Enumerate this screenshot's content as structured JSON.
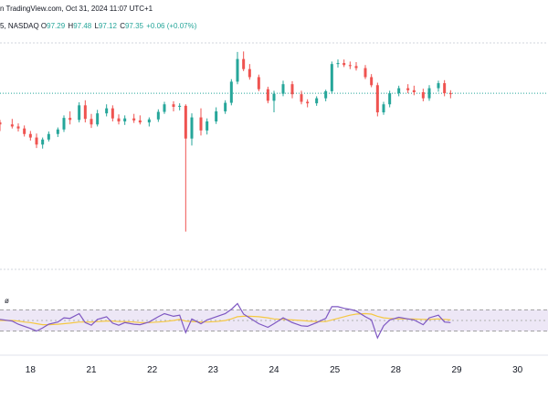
{
  "header": {
    "line1": "n TradingView.com, Oct 31, 2024 11:07 UTC+1",
    "symbol": "5, NASDAQ",
    "o_label": "O",
    "o_value": "97.29",
    "h_label": "H",
    "h_value": "97.48",
    "l_label": "L",
    "l_value": "97.12",
    "c_label": "C",
    "c_value": "97.35",
    "change": "+0.06 (+0.07%)"
  },
  "indicator": {
    "label": "ø"
  },
  "colors": {
    "up": "#26a69a",
    "down": "#ef5350",
    "rsi_line": "#7e57c2",
    "rsi_ma": "#f5c842",
    "rsi_band": "#ede7f6",
    "dotted": "#26a69a",
    "grid": "#d1d4dc"
  },
  "chart_data": [
    {
      "type": "candlestick",
      "title": "",
      "x_tick_labels": [
        "18",
        "21",
        "22",
        "23",
        "24",
        "25",
        "28",
        "29",
        "30"
      ],
      "x_tick_positions_days": [
        0.5,
        1.5,
        2.5,
        3.5,
        4.5,
        5.5,
        6.5,
        7.5,
        8.5
      ],
      "x_range_days": [
        0,
        9
      ],
      "ylim": [
        93.3,
        97.8
      ],
      "current_price_line": 96.8,
      "grid": false,
      "candles": [
        [
          0.0,
          96.22,
          96.27,
          96.05,
          96.18
        ],
        [
          0.2,
          96.18,
          96.29,
          96.1,
          96.14
        ],
        [
          0.3,
          96.14,
          96.2,
          96.04,
          96.1
        ],
        [
          0.4,
          96.1,
          96.16,
          95.94,
          95.99
        ],
        [
          0.5,
          95.99,
          96.05,
          95.86,
          95.92
        ],
        [
          0.6,
          95.92,
          96.0,
          95.71,
          95.78
        ],
        [
          0.7,
          95.78,
          95.92,
          95.7,
          95.88
        ],
        [
          0.8,
          95.88,
          96.04,
          95.84,
          95.99
        ],
        [
          0.95,
          95.99,
          96.12,
          95.93,
          96.08
        ],
        [
          1.05,
          96.08,
          96.36,
          96.03,
          96.31
        ],
        [
          1.15,
          96.31,
          96.44,
          96.18,
          96.27
        ],
        [
          1.3,
          96.27,
          96.62,
          96.22,
          96.56
        ],
        [
          1.4,
          96.56,
          96.66,
          96.22,
          96.29
        ],
        [
          1.5,
          96.29,
          96.39,
          96.11,
          96.18
        ],
        [
          1.6,
          96.18,
          96.47,
          96.14,
          96.4
        ],
        [
          1.75,
          96.4,
          96.58,
          96.34,
          96.5
        ],
        [
          1.85,
          96.5,
          96.56,
          96.24,
          96.3
        ],
        [
          1.95,
          96.3,
          96.38,
          96.18,
          96.24
        ],
        [
          2.05,
          96.24,
          96.36,
          96.17,
          96.3
        ],
        [
          2.2,
          96.3,
          96.39,
          96.21,
          96.26
        ],
        [
          2.3,
          96.26,
          96.36,
          96.18,
          96.22
        ],
        [
          2.45,
          96.22,
          96.32,
          96.14,
          96.28
        ],
        [
          2.6,
          96.28,
          96.48,
          96.23,
          96.43
        ],
        [
          2.7,
          96.43,
          96.63,
          96.39,
          96.58
        ],
        [
          2.85,
          96.58,
          96.64,
          96.44,
          96.53
        ],
        [
          2.95,
          96.53,
          96.6,
          96.46,
          96.55
        ],
        [
          3.05,
          96.55,
          96.58,
          94.05,
          95.9
        ],
        [
          3.15,
          95.9,
          96.4,
          95.76,
          96.32
        ],
        [
          3.3,
          96.32,
          96.5,
          95.96,
          96.06
        ],
        [
          3.4,
          96.06,
          96.3,
          95.98,
          96.24
        ],
        [
          3.55,
          96.24,
          96.52,
          96.19,
          96.44
        ],
        [
          3.7,
          96.44,
          96.66,
          96.39,
          96.61
        ],
        [
          3.8,
          96.61,
          97.08,
          96.56,
          97.03
        ],
        [
          3.9,
          97.03,
          97.62,
          96.98,
          97.48
        ],
        [
          4.0,
          97.48,
          97.63,
          97.24,
          97.28
        ],
        [
          4.1,
          97.28,
          97.38,
          97.07,
          97.12
        ],
        [
          4.25,
          97.12,
          97.17,
          96.84,
          96.88
        ],
        [
          4.4,
          96.88,
          96.93,
          96.6,
          96.65
        ],
        [
          4.5,
          96.65,
          96.85,
          96.42,
          96.79
        ],
        [
          4.65,
          96.79,
          97.05,
          96.74,
          96.98
        ],
        [
          4.8,
          96.98,
          97.04,
          96.7,
          96.78
        ],
        [
          4.95,
          96.78,
          96.85,
          96.58,
          96.63
        ],
        [
          5.05,
          96.63,
          96.68,
          96.52,
          96.6
        ],
        [
          5.2,
          96.6,
          96.74,
          96.55,
          96.7
        ],
        [
          5.35,
          96.7,
          96.87,
          96.64,
          96.84
        ],
        [
          5.45,
          96.84,
          97.43,
          96.79,
          97.38
        ],
        [
          5.55,
          97.38,
          97.47,
          97.31,
          97.4
        ],
        [
          5.65,
          97.4,
          97.47,
          97.32,
          97.36
        ],
        [
          5.75,
          97.36,
          97.43,
          97.28,
          97.34
        ],
        [
          5.85,
          97.34,
          97.42,
          97.25,
          97.3
        ],
        [
          6.0,
          97.3,
          97.36,
          97.08,
          97.12
        ],
        [
          6.1,
          97.12,
          97.18,
          96.92,
          96.96
        ],
        [
          6.2,
          96.96,
          97.01,
          96.34,
          96.42
        ],
        [
          6.3,
          96.42,
          96.63,
          96.37,
          96.58
        ],
        [
          6.4,
          96.58,
          96.85,
          96.52,
          96.8
        ],
        [
          6.55,
          96.8,
          96.95,
          96.74,
          96.9
        ],
        [
          6.7,
          96.9,
          96.98,
          96.8,
          96.86
        ],
        [
          6.8,
          96.86,
          96.95,
          96.76,
          96.82
        ],
        [
          6.95,
          96.82,
          96.89,
          96.64,
          96.7
        ],
        [
          7.05,
          96.7,
          96.96,
          96.65,
          96.9
        ],
        [
          7.2,
          96.9,
          97.05,
          96.83,
          97.0
        ],
        [
          7.3,
          97.0,
          97.06,
          96.74,
          96.8
        ],
        [
          7.4,
          96.8,
          96.86,
          96.7,
          96.79
        ]
      ]
    },
    {
      "type": "line",
      "title": "",
      "label": "ø",
      "ylim": [
        0,
        100
      ],
      "band": [
        30,
        70
      ],
      "series": [
        {
          "values": [
            52,
            49,
            43,
            39,
            35,
            30,
            36,
            43,
            47,
            55,
            54,
            63,
            46,
            41,
            52,
            57,
            45,
            41,
            46,
            43,
            42,
            47,
            57,
            63,
            58,
            60,
            27,
            53,
            44,
            51,
            57,
            63,
            71,
            82,
            62,
            55,
            44,
            37,
            44,
            55,
            46,
            40,
            39,
            46,
            54,
            76,
            76,
            73,
            71,
            68,
            57,
            51,
            17,
            40,
            51,
            56,
            53,
            51,
            42,
            55,
            60,
            47,
            46
          ]
        },
        {
          "values": [
            50,
            50,
            49,
            47,
            46,
            44,
            42,
            42,
            43,
            44,
            45,
            47,
            47,
            47,
            48,
            49,
            49,
            48,
            48,
            47,
            46,
            46,
            47,
            48,
            50,
            52,
            49,
            48,
            47,
            47,
            48,
            50,
            53,
            57,
            58,
            58,
            57,
            55,
            53,
            52,
            51,
            50,
            49,
            48,
            48,
            51,
            54,
            57,
            60,
            62,
            63,
            62,
            58,
            55,
            54,
            53,
            53,
            53,
            52,
            52,
            53,
            52,
            51
          ]
        }
      ]
    }
  ]
}
